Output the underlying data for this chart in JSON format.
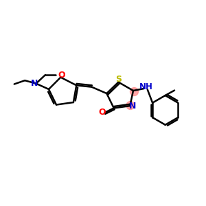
{
  "bg_color": "#ffffff",
  "bond_color": "#000000",
  "N_color": "#0000cc",
  "O_color": "#ff0000",
  "S_color": "#bbbb00",
  "highlight_color": "#ff8888",
  "line_width": 1.8,
  "figsize": [
    3.0,
    3.0
  ],
  "dpi": 100,
  "xlim": [
    0,
    10
  ],
  "ylim": [
    0,
    10
  ]
}
